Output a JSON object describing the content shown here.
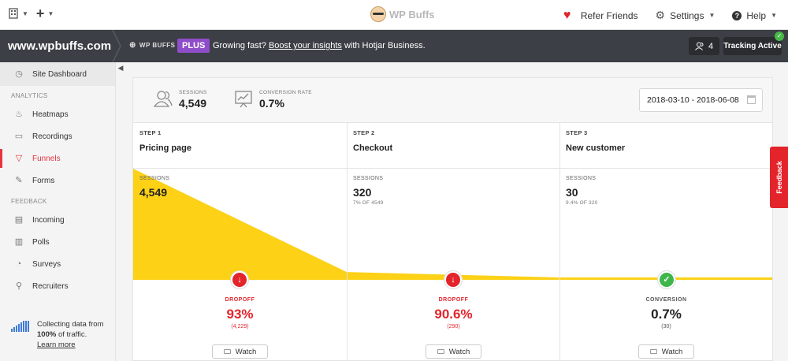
{
  "topbar": {
    "logo_text": "WP Buffs",
    "refer_label": "Refer Friends",
    "settings_label": "Settings",
    "help_label": "Help"
  },
  "darkbar": {
    "site_name": "www.wpbuffs.com",
    "brand_label": "WP BUFFS",
    "plan_badge": "PLUS",
    "promo_prefix": "Growing fast?",
    "promo_link": "Boost your insights",
    "promo_suffix": "with Hotjar Business.",
    "user_count": "4",
    "tracking_label": "Tracking Active"
  },
  "sidebar": {
    "dashboard_label": "Site Dashboard",
    "analytics_head": "ANALYTICS",
    "analytics_items": [
      "Heatmaps",
      "Recordings",
      "Funnels",
      "Forms"
    ],
    "feedback_head": "FEEDBACK",
    "feedback_items": [
      "Incoming",
      "Polls",
      "Surveys",
      "Recruiters"
    ],
    "footer_line1": "Collecting data from",
    "footer_pct": "100%",
    "footer_line2": "of traffic.",
    "footer_link": "Learn more"
  },
  "summary": {
    "sessions_label": "SESSIONS",
    "sessions_value": "4,549",
    "conversion_label": "CONVERSION RATE",
    "conversion_value": "0.7%",
    "date_range": "2018-03-10 - 2018-06-08"
  },
  "steps": [
    {
      "step_label": "STEP 1",
      "name": "Pricing page",
      "sessions_label": "SESSIONS",
      "sessions": "4,549",
      "sessions_sub": "",
      "result_label": "DROPOFF",
      "result_value": "93%",
      "result_sub": "(4,229)",
      "watch_label": "Watch",
      "result_type": "dropoff",
      "funnel_fraction": 1.0
    },
    {
      "step_label": "STEP 2",
      "name": "Checkout",
      "sessions_label": "SESSIONS",
      "sessions": "320",
      "sessions_sub": "7% OF 4549",
      "result_label": "DROPOFF",
      "result_value": "90.6%",
      "result_sub": "(290)",
      "watch_label": "Watch",
      "result_type": "dropoff",
      "funnel_fraction": 0.07
    },
    {
      "step_label": "STEP 3",
      "name": "New customer",
      "sessions_label": "SESSIONS",
      "sessions": "30",
      "sessions_sub": "9.4% OF 320",
      "result_label": "CONVERSION",
      "result_value": "0.7%",
      "result_sub": "(30)",
      "watch_label": "Watch",
      "result_type": "conversion",
      "funnel_fraction": 0.0066
    }
  ],
  "feedback_tab": "Feedback",
  "colors": {
    "accent": "#e3242b",
    "funnel": "#fcd116",
    "success": "#3fb64a",
    "plus": "#8f4ec9",
    "dark": "#3c3f45"
  }
}
